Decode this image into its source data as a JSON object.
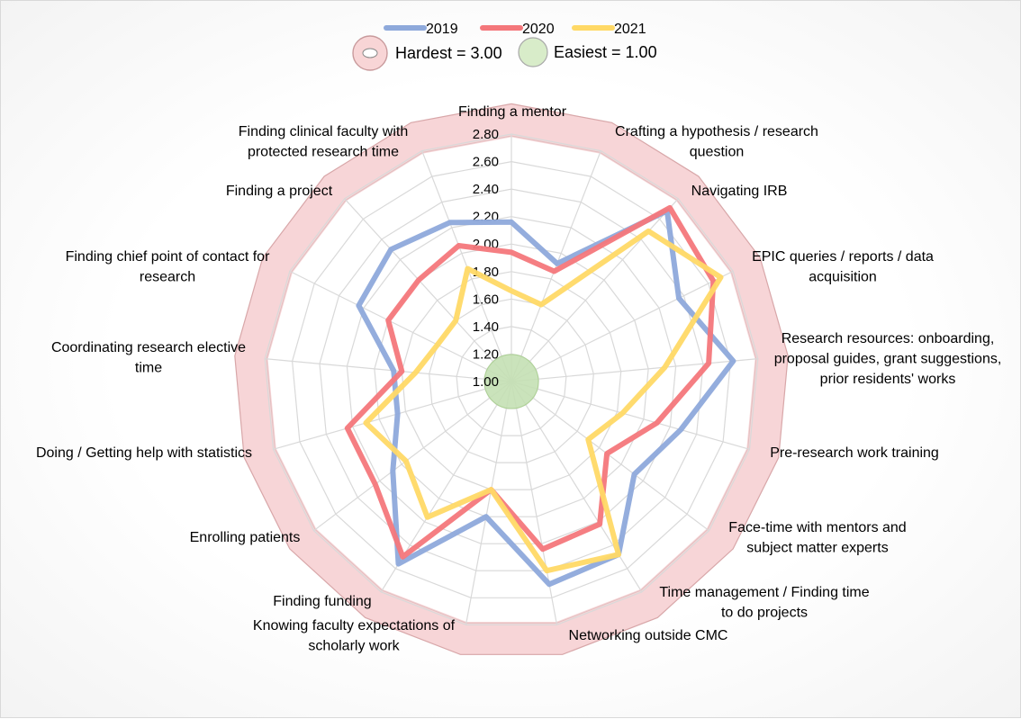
{
  "chart_data": {
    "type": "radar",
    "categories": [
      "Finding a mentor",
      "Crafting a hypothesis / research question",
      "Navigating IRB",
      "EPIC queries / reports / data acquisition",
      "Research resources: onboarding, proposal guides, grant suggestions, prior residents' works",
      "Pre-research work training",
      "Face-time with mentors and subject matter experts",
      "Time management / Finding time to do projects",
      "Networking outside CMC",
      "Knowing faculty expectations of scholarly work",
      "Finding funding",
      "Enrolling patients",
      "Doing / Getting help with statistics",
      "Coordinating research elective time",
      "Finding chief point of contact for research",
      "Finding a project",
      "Finding clinical faculty with protected research time"
    ],
    "series": [
      {
        "name": "2019",
        "color": "#8ea9db",
        "values": [
          2.16,
          1.92,
          2.68,
          2.36,
          2.62,
          2.28,
          2.12,
          2.48,
          2.5,
          2.0,
          2.56,
          2.08,
          1.86,
          1.86,
          2.24,
          2.3,
          2.24
        ]
      },
      {
        "name": "2020",
        "color": "#f4777b",
        "values": [
          1.94,
          1.86,
          2.71,
          2.64,
          2.44,
          2.1,
          1.87,
          2.22,
          2.24,
          1.8,
          2.5,
          2.24,
          2.24,
          1.8,
          2.0,
          2.0,
          2.06
        ]
      },
      {
        "name": "2021",
        "color": "#ffd966",
        "values": [
          1.66,
          1.6,
          2.48,
          2.7,
          2.12,
          1.84,
          1.7,
          2.48,
          2.4,
          1.8,
          2.16,
          1.96,
          2.1,
          1.7,
          1.6,
          1.6,
          1.88
        ]
      }
    ],
    "rlim": [
      1.0,
      2.8
    ],
    "tick_labels": [
      "1.00",
      "1.20",
      "1.40",
      "1.60",
      "1.80",
      "2.00",
      "2.20",
      "2.40",
      "2.60",
      "2.80"
    ],
    "reference_bands": [
      {
        "label": "Hardest = 3.00",
        "value": 3.0,
        "color": "#f4c7c9"
      },
      {
        "label": "Easiest = 1.00",
        "value": 1.0,
        "color": "#c5e0b4"
      }
    ],
    "legend_position": "top"
  }
}
